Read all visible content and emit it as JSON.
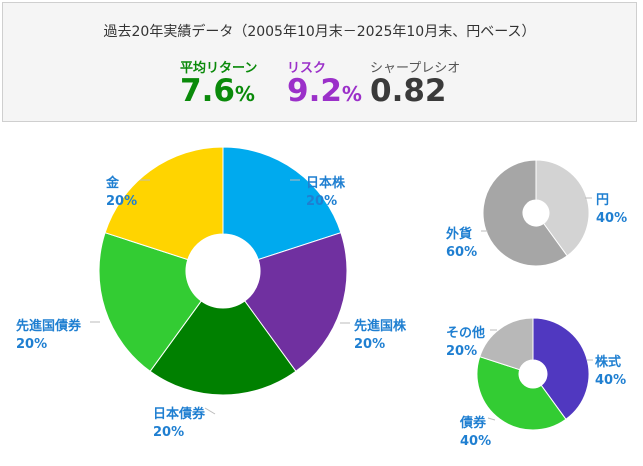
{
  "stats": {
    "title": "過去20年実績データ（2005年10月末－2025年10月末、円ベース）",
    "avg_return_label": "平均リターン",
    "avg_return_value": "7.6",
    "risk_label": "リスク",
    "risk_value": "9.2",
    "sharpe_label": "シャープレシオ",
    "sharpe_value": "0.82",
    "percent_sign": "%",
    "colors": {
      "return": "#0a8a0a",
      "risk": "#9b30c9",
      "sharpe": "#3a3a3a"
    }
  },
  "chart_data": [
    {
      "type": "pie",
      "title": "",
      "style": "donut",
      "start": "top, clockwise",
      "slices": [
        {
          "name": "日本株",
          "value": 20,
          "label": "20%",
          "color": "#00aaee"
        },
        {
          "name": "先進国株",
          "value": 20,
          "label": "20%",
          "color": "#7030a0"
        },
        {
          "name": "日本債券",
          "value": 20,
          "label": "20%",
          "color": "#008000"
        },
        {
          "name": "先進国債券",
          "value": 20,
          "label": "20%",
          "color": "#33cc33"
        },
        {
          "name": "金",
          "value": 20,
          "label": "20%",
          "color": "#ffd400"
        }
      ]
    },
    {
      "type": "pie",
      "title": "",
      "style": "donut",
      "start": "top, clockwise",
      "slices": [
        {
          "name": "円",
          "value": 40,
          "label": "40%",
          "color": "#d3d3d3"
        },
        {
          "name": "外貨",
          "value": 60,
          "label": "60%",
          "color": "#a6a6a6"
        }
      ]
    },
    {
      "type": "pie",
      "title": "",
      "style": "donut",
      "start": "top, clockwise",
      "slices": [
        {
          "name": "株式",
          "value": 40,
          "label": "40%",
          "color": "#5038c0"
        },
        {
          "name": "債券",
          "value": 40,
          "label": "40%",
          "color": "#33cc33"
        },
        {
          "name": "その他",
          "value": 20,
          "label": "20%",
          "color": "#b8b8b8"
        }
      ]
    }
  ]
}
